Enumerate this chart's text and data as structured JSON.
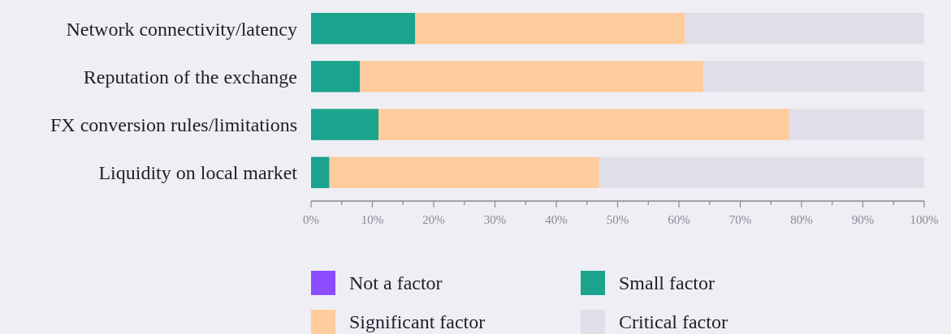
{
  "chart_data": {
    "type": "bar",
    "orientation": "horizontal",
    "stacked": true,
    "categories": [
      "Network connectivity/latency",
      "Reputation of the exchange",
      "FX conversion rules/limitations",
      "Liquidity on local market"
    ],
    "series": [
      {
        "name": "Not a factor",
        "color": "#8b4dff",
        "values": [
          0,
          0,
          0,
          0
        ]
      },
      {
        "name": "Small factor",
        "color": "#1ba38e",
        "values": [
          17,
          8,
          11,
          3
        ]
      },
      {
        "name": "Significant factor",
        "color": "#ffcc9e",
        "values": [
          44,
          56,
          67,
          44
        ]
      },
      {
        "name": "Critical factor",
        "color": "#e0dfe9",
        "values": [
          39,
          36,
          22,
          53
        ]
      }
    ],
    "xlim": [
      0,
      100
    ],
    "xticks": [
      {
        "value": 0,
        "label": "0%"
      },
      {
        "value": 5,
        "label": null
      },
      {
        "value": 10,
        "label": "10%"
      },
      {
        "value": 15,
        "label": null
      },
      {
        "value": 20,
        "label": "20%"
      },
      {
        "value": 25,
        "label": null
      },
      {
        "value": 30,
        "label": "30%"
      },
      {
        "value": 35,
        "label": null
      },
      {
        "value": 40,
        "label": "40%"
      },
      {
        "value": 45,
        "label": null
      },
      {
        "value": 50,
        "label": "50%"
      },
      {
        "value": 55,
        "label": null
      },
      {
        "value": 60,
        "label": "60%"
      },
      {
        "value": 65,
        "label": null
      },
      {
        "value": 70,
        "label": "70%"
      },
      {
        "value": 75,
        "label": null
      },
      {
        "value": 80,
        "label": "80%"
      },
      {
        "value": 85,
        "label": null
      },
      {
        "value": 90,
        "label": "90%"
      },
      {
        "value": 95,
        "label": null
      },
      {
        "value": 100,
        "label": "100%"
      }
    ],
    "legend": "bottom"
  }
}
